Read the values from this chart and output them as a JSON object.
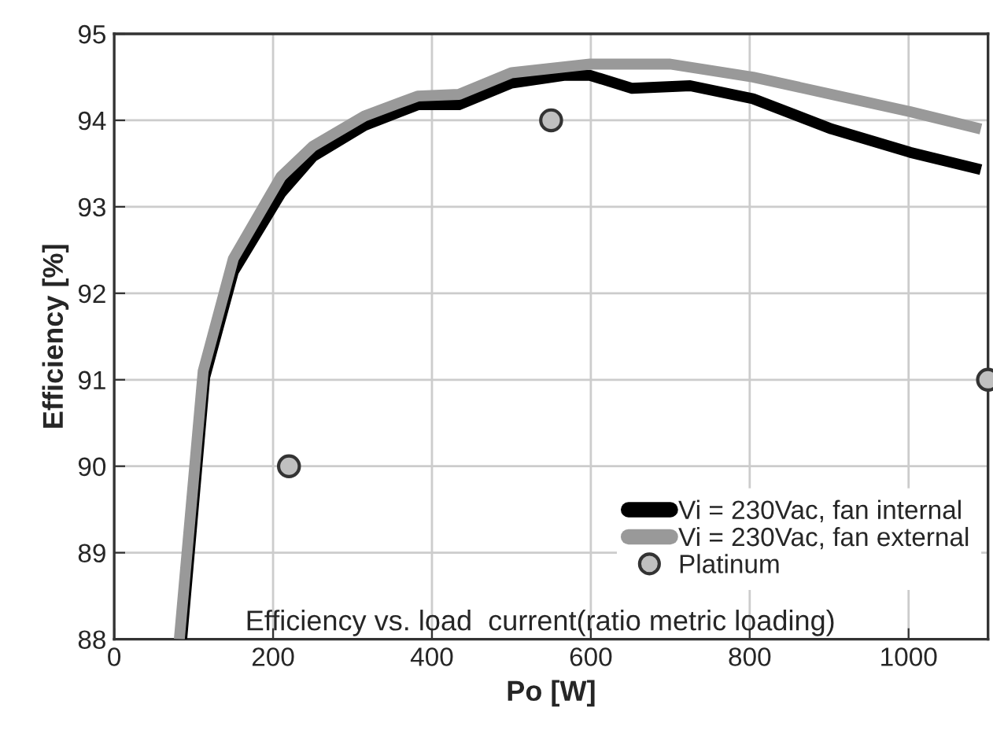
{
  "chart_data": {
    "type": "line",
    "xlabel": "Po [W]",
    "ylabel": "Efficiency [%]",
    "xlim": [
      0,
      1100
    ],
    "xticks": [
      0,
      200,
      400,
      600,
      800,
      1000
    ],
    "ylim": [
      88,
      95
    ],
    "yticks": [
      88,
      89,
      90,
      91,
      92,
      93,
      94,
      95
    ],
    "grid": true,
    "legend": "bottom right",
    "annotations": [
      "Efficiency vs. load  current(ratio metric loading)"
    ],
    "series": [
      {
        "name": "Vi = 230Vac, fan internal",
        "color": "#000000",
        "marker": "none",
        "x": [
          85,
          114,
          150,
          210,
          250,
          315,
          382,
          434,
          500,
          566,
          599,
          652,
          725,
          804,
          903,
          1002,
          1091
        ],
        "values": [
          88,
          91.03,
          92.25,
          93.16,
          93.58,
          93.94,
          94.18,
          94.18,
          94.43,
          94.52,
          94.52,
          94.37,
          94.4,
          94.25,
          93.9,
          93.63,
          93.43
        ]
      },
      {
        "name": "Vi = 230Vac, fan external",
        "color": "#999999",
        "marker": "none",
        "x": [
          82,
          112,
          150,
          210,
          250,
          315,
          382,
          434,
          500,
          599,
          700,
          804,
          903,
          1002,
          1091
        ],
        "values": [
          88,
          91.1,
          92.4,
          93.35,
          93.7,
          94.05,
          94.28,
          94.3,
          94.55,
          94.65,
          94.65,
          94.5,
          94.3,
          94.1,
          93.9
        ]
      },
      {
        "name": "Platinum",
        "type": "scatter",
        "color": "#c0c0c0",
        "marker": "circle",
        "x": [
          220,
          550,
          1100
        ],
        "values": [
          90,
          94,
          91
        ]
      }
    ]
  }
}
